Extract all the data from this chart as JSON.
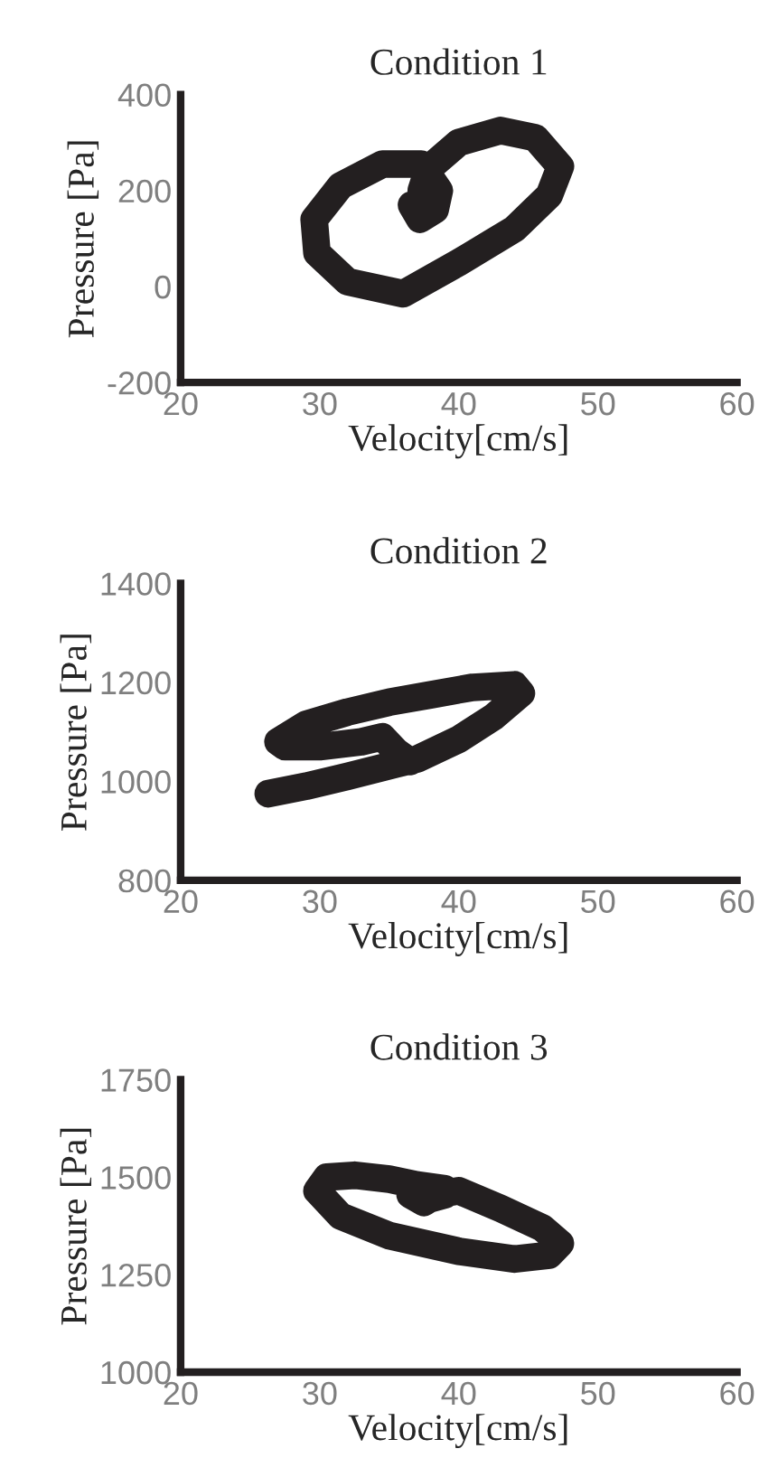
{
  "chart_data": [
    {
      "type": "line",
      "title": "Condition 1",
      "xlabel": "Velocity[cm/s]",
      "ylabel": "Pressure [Pa]",
      "xlim": [
        20,
        60
      ],
      "xticks": [
        20,
        30,
        40,
        50,
        60
      ],
      "ylim": [
        -200,
        400
      ],
      "yticks": [
        -200,
        0,
        200,
        400
      ],
      "grid": false,
      "series": [
        {
          "color": "#231f20",
          "x": [
            37.5,
            37.3,
            37.8,
            40,
            43,
            45.5,
            47.3,
            46.5,
            44,
            40,
            36,
            32,
            29.8,
            29.6,
            31.5,
            34.5,
            37.3,
            38.6,
            38.3,
            37.2,
            36.6,
            37.5,
            38.0
          ],
          "values": [
            150,
            200,
            245,
            300,
            325,
            310,
            250,
            190,
            120,
            50,
            -15,
            10,
            70,
            140,
            210,
            255,
            255,
            200,
            160,
            140,
            170,
            175,
            155
          ]
        }
      ]
    },
    {
      "type": "line",
      "title": "Condition 2",
      "xlabel": "Velocity[cm/s]",
      "ylabel": "Pressure [Pa]",
      "xlim": [
        20,
        60
      ],
      "xticks": [
        20,
        30,
        40,
        50,
        60
      ],
      "ylim": [
        800,
        1400
      ],
      "yticks": [
        800,
        1000,
        1200,
        1400
      ],
      "grid": false,
      "series": [
        {
          "color": "#231f20",
          "x": [
            26.3,
            29,
            32,
            35.5,
            37,
            40,
            42.5,
            44.5,
            44,
            41,
            38,
            35,
            32,
            29,
            27,
            27.5,
            30,
            33,
            34.5,
            35.5,
            36.5
          ],
          "values": [
            975,
            990,
            1010,
            1035,
            1045,
            1085,
            1130,
            1178,
            1195,
            1190,
            1175,
            1160,
            1140,
            1115,
            1080,
            1070,
            1070,
            1080,
            1090,
            1060,
            1040
          ]
        }
      ]
    },
    {
      "type": "line",
      "title": "Condition 3",
      "xlabel": "Velocity[cm/s]",
      "ylabel": "Pressure [Pa]",
      "xlim": [
        20,
        60
      ],
      "xticks": [
        20,
        30,
        40,
        50,
        60
      ],
      "ylim": [
        1000,
        1750
      ],
      "yticks": [
        1000,
        1250,
        1500,
        1750
      ],
      "grid": false,
      "series": [
        {
          "color": "#231f20",
          "x": [
            37.5,
            40,
            43,
            46,
            47.3,
            46.5,
            44,
            40,
            35,
            31.5,
            29.8,
            30.5,
            32.5,
            35,
            37,
            39,
            37.5,
            36.5,
            38,
            39
          ],
          "values": [
            1450,
            1465,
            1420,
            1370,
            1330,
            1300,
            1290,
            1310,
            1350,
            1400,
            1465,
            1500,
            1505,
            1495,
            1480,
            1470,
            1435,
            1455,
            1445,
            1455
          ]
        }
      ]
    }
  ]
}
